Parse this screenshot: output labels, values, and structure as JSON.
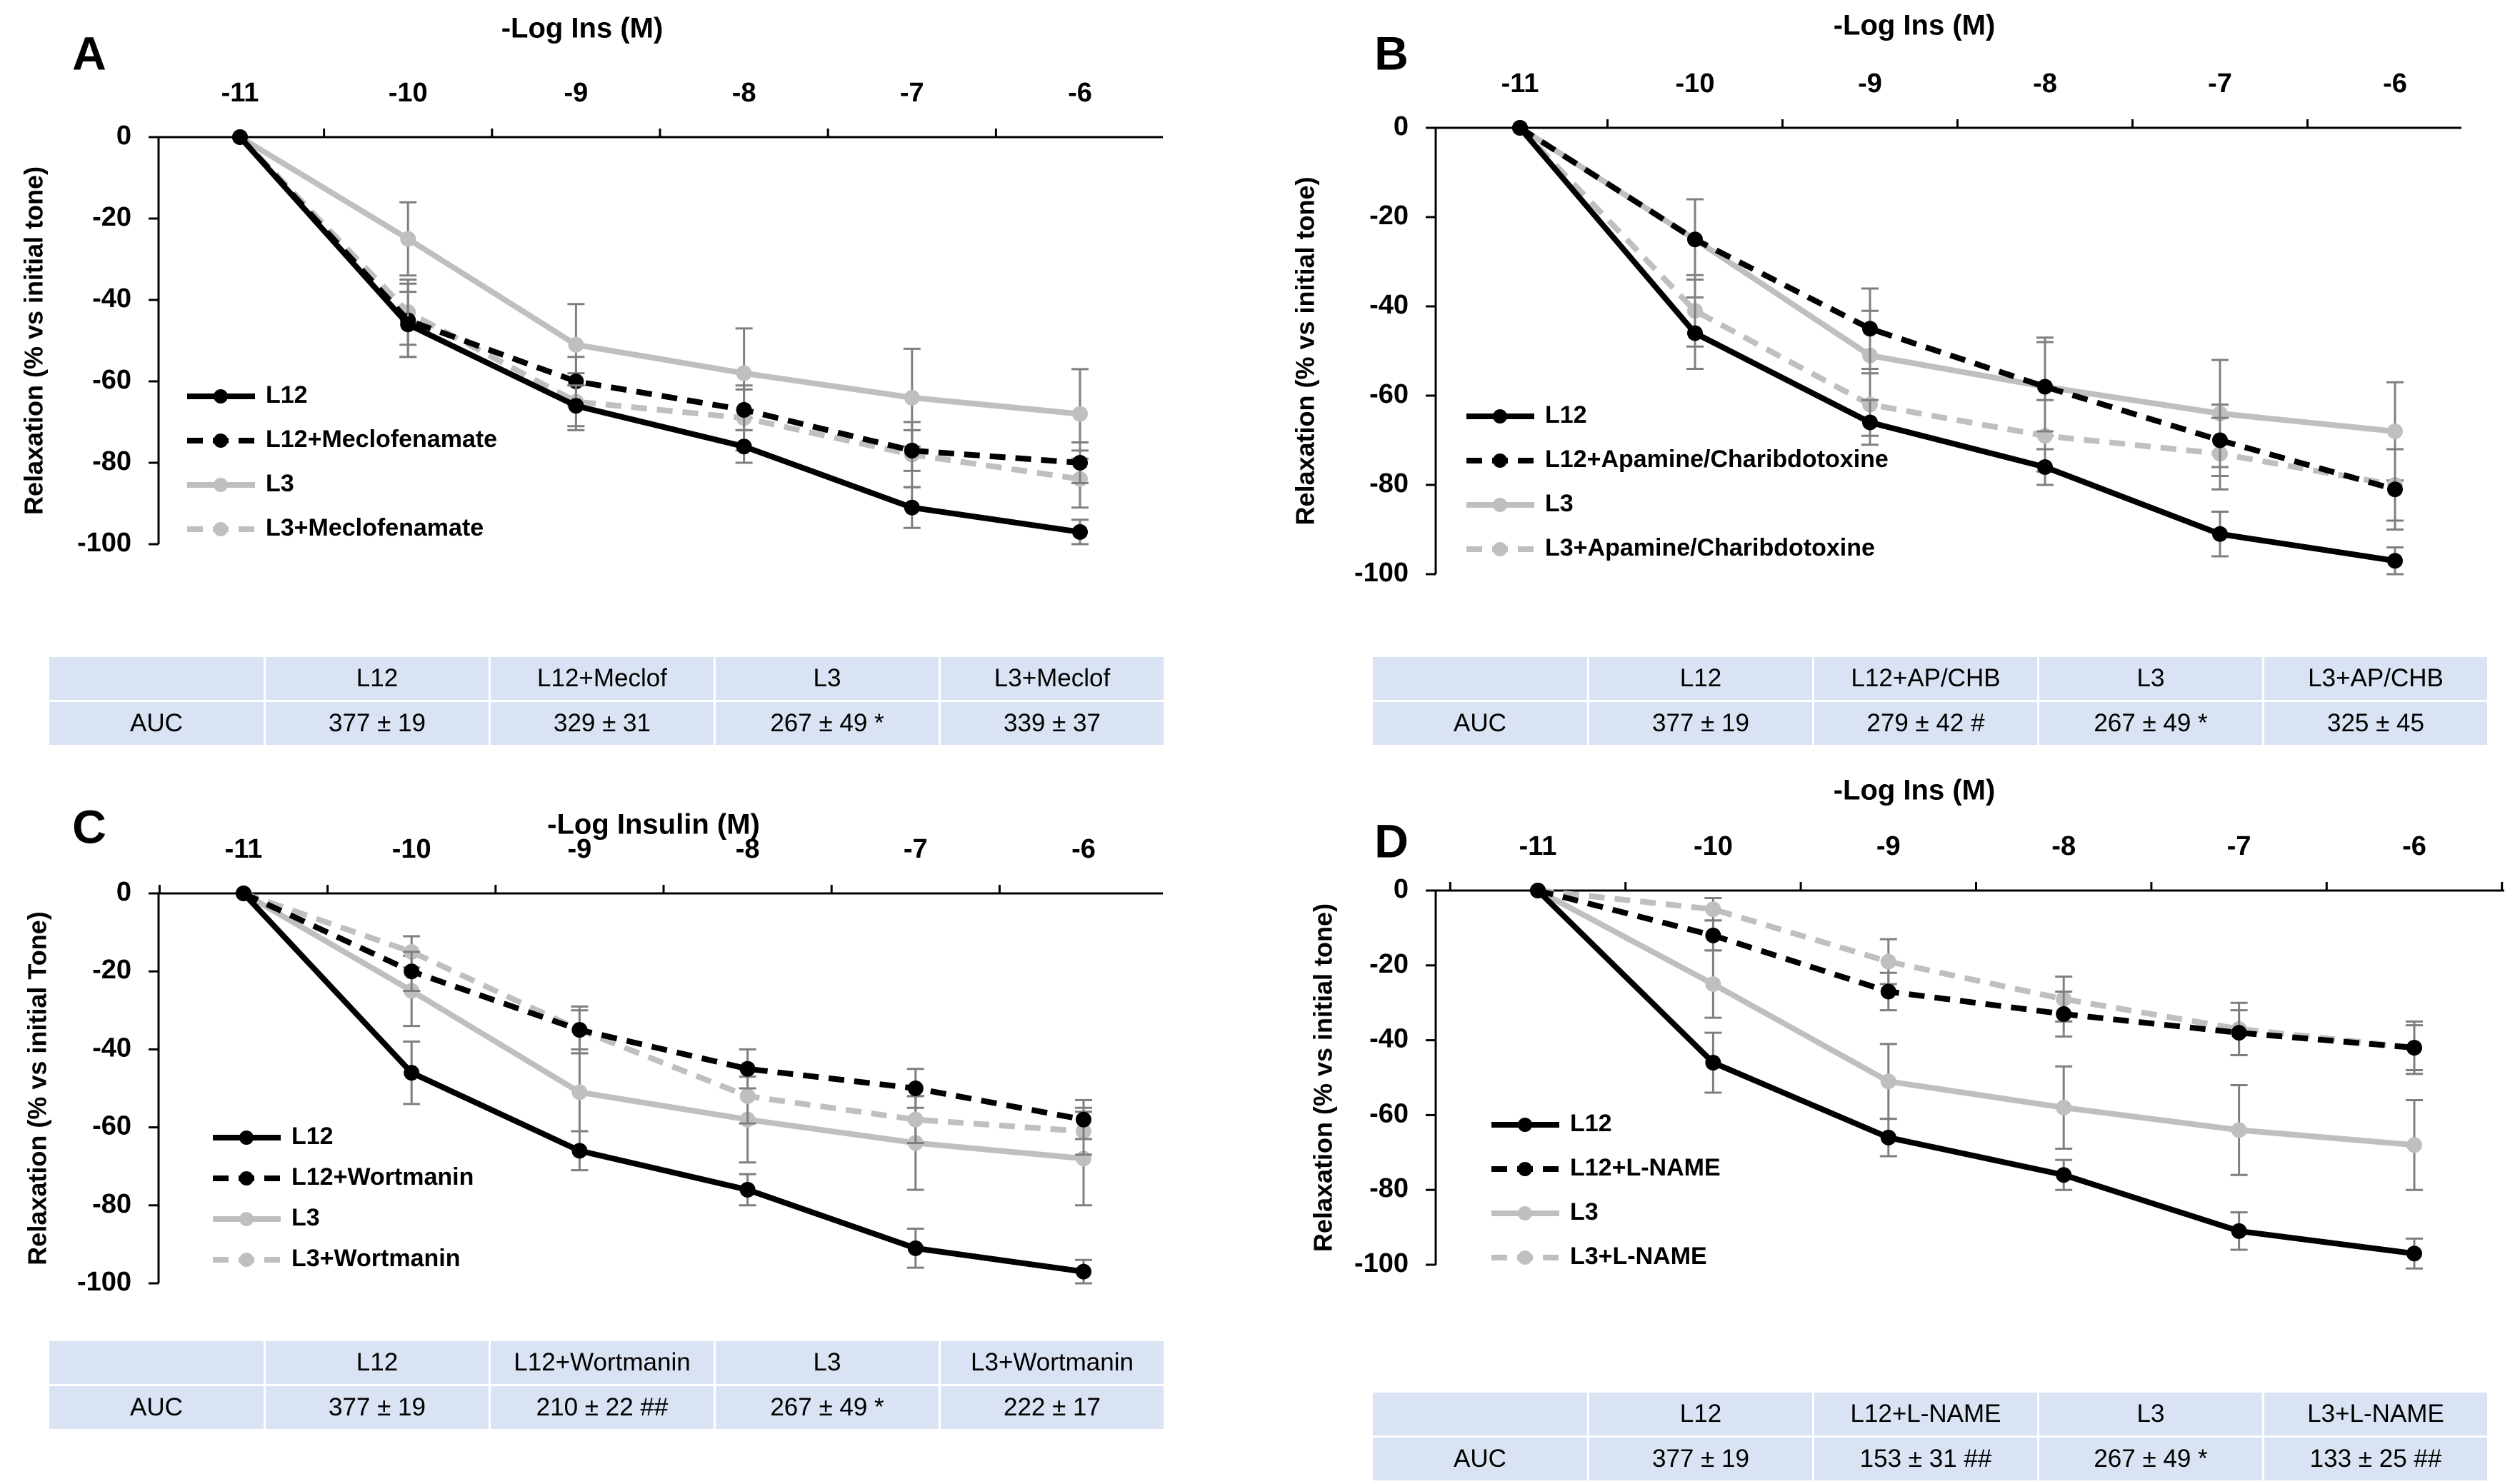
{
  "chart_data": [
    {
      "type": "line",
      "panel": "A",
      "title": "-Log Ins (M)",
      "xlabel": "-Log Ins (M)",
      "ylabel": "Relaxation (% vs initial tone)",
      "categories": [
        "-11",
        "-10",
        "-9",
        "-8",
        "-7",
        "-6"
      ],
      "xlim": [
        -11,
        -6
      ],
      "ylim": [
        -100,
        0
      ],
      "yticks": [
        "0",
        "-20",
        "-40",
        "-60",
        "-80",
        "-100"
      ],
      "series": [
        {
          "name": "L12",
          "values": [
            0,
            -46,
            -66,
            -76,
            -91,
            -97
          ],
          "errors": [
            0,
            8,
            5,
            4,
            5,
            3
          ]
        },
        {
          "name": "L12+Meclofenamate",
          "values": [
            0,
            -45,
            -60,
            -67,
            -77,
            -80
          ],
          "errors": [
            0,
            9,
            6,
            5,
            5,
            5
          ]
        },
        {
          "name": "L3",
          "values": [
            0,
            -25,
            -51,
            -58,
            -64,
            -68
          ],
          "errors": [
            0,
            9,
            10,
            11,
            12,
            11
          ]
        },
        {
          "name": "L3+Meclofenamate",
          "values": [
            0,
            -43,
            -65,
            -69,
            -78,
            -84
          ],
          "errors": [
            0,
            8,
            7,
            8,
            8,
            7
          ]
        }
      ],
      "auc": {
        "row_label": "AUC",
        "columns": [
          "L12",
          "L12+Meclof",
          "L3",
          "L3+Meclof"
        ],
        "values": [
          "377 ± 19",
          "329 ± 31",
          "267 ± 49 *",
          "339 ± 37"
        ]
      }
    },
    {
      "type": "line",
      "panel": "B",
      "title": "-Log Ins (M)",
      "xlabel": "-Log Ins (M)",
      "ylabel": "Relaxation (% vs initial tone)",
      "categories": [
        "-11",
        "-10",
        "-9",
        "-8",
        "-7",
        "-6"
      ],
      "xlim": [
        -11,
        -6
      ],
      "ylim": [
        -100,
        0
      ],
      "yticks": [
        "0",
        "-20",
        "-40",
        "-60",
        "-80",
        "-100"
      ],
      "series": [
        {
          "name": "L12",
          "values": [
            0,
            -46,
            -66,
            -76,
            -91,
            -97
          ],
          "errors": [
            0,
            8,
            5,
            4,
            5,
            3
          ]
        },
        {
          "name": "L12+Apamine/Charibdotoxine",
          "values": [
            0,
            -25,
            -45,
            -58,
            -70,
            -81
          ],
          "errors": [
            0,
            9,
            9,
            10,
            8,
            9
          ]
        },
        {
          "name": "L3",
          "values": [
            0,
            -25,
            -51,
            -58,
            -64,
            -68
          ],
          "errors": [
            0,
            9,
            10,
            11,
            12,
            11
          ]
        },
        {
          "name": "L3+Apamine/Charibdotoxine",
          "values": [
            0,
            -41,
            -62,
            -69,
            -73,
            -80
          ],
          "errors": [
            0,
            8,
            7,
            8,
            8,
            8
          ]
        }
      ],
      "auc": {
        "row_label": "AUC",
        "columns": [
          "L12",
          "L12+AP/CHB",
          "L3",
          "L3+AP/CHB"
        ],
        "values": [
          "377 ± 19",
          "279 ± 42 #",
          "267 ± 49 *",
          "325 ± 45"
        ]
      }
    },
    {
      "type": "line",
      "panel": "C",
      "title": "-Log Insulin (M)",
      "xlabel": "-Log Insulin (M)",
      "ylabel": "Relaxation (% vs initial Tone)",
      "categories": [
        "-11",
        "-10",
        "-9",
        "-8",
        "-7",
        "-6"
      ],
      "xlim": [
        -11,
        -6
      ],
      "ylim": [
        -100,
        0
      ],
      "yticks": [
        "0",
        "-20",
        "-40",
        "-60",
        "-80",
        "-100"
      ],
      "series": [
        {
          "name": "L12",
          "values": [
            0,
            -46,
            -66,
            -76,
            -91,
            -97
          ],
          "errors": [
            0,
            8,
            5,
            4,
            5,
            3
          ]
        },
        {
          "name": "L12+Wortmanin",
          "values": [
            0,
            -20,
            -35,
            -45,
            -50,
            -58
          ],
          "errors": [
            0,
            5,
            5,
            5,
            5,
            5
          ]
        },
        {
          "name": "L3",
          "values": [
            0,
            -25,
            -51,
            -58,
            -64,
            -68
          ],
          "errors": [
            0,
            9,
            10,
            11,
            12,
            12
          ]
        },
        {
          "name": "L3+Wortmanin",
          "values": [
            0,
            -15,
            -35,
            -52,
            -58,
            -61
          ],
          "errors": [
            0,
            4,
            6,
            7,
            6,
            6
          ]
        }
      ],
      "auc": {
        "row_label": "AUC",
        "columns": [
          "L12",
          "L12+Wortmanin",
          "L3",
          "L3+Wortmanin"
        ],
        "values": [
          "377 ± 19",
          "210 ± 22 ##",
          "267 ± 49 *",
          "222 ± 17"
        ]
      }
    },
    {
      "type": "line",
      "panel": "D",
      "title": "-Log Ins (M)",
      "xlabel": "-Log Ins (M)",
      "ylabel": "Relaxation (% vs initial tone)",
      "categories": [
        "-11",
        "-10",
        "-9",
        "-8",
        "-7",
        "-6"
      ],
      "xlim": [
        -11,
        -6
      ],
      "ylim": [
        -100,
        0
      ],
      "yticks": [
        "0",
        "-20",
        "-40",
        "-60",
        "-80",
        "-100"
      ],
      "series": [
        {
          "name": "L12",
          "values": [
            0,
            -46,
            -66,
            -76,
            -91,
            -97
          ],
          "errors": [
            0,
            8,
            5,
            4,
            5,
            4
          ]
        },
        {
          "name": "L12+L-NAME",
          "values": [
            0,
            -12,
            -27,
            -33,
            -38,
            -42
          ],
          "errors": [
            0,
            4,
            5,
            6,
            6,
            7
          ]
        },
        {
          "name": "L3",
          "values": [
            0,
            -25,
            -51,
            -58,
            -64,
            -68
          ],
          "errors": [
            0,
            9,
            10,
            11,
            12,
            12
          ]
        },
        {
          "name": "L3+L-NAME",
          "values": [
            0,
            -5,
            -19,
            -29,
            -37,
            -42
          ],
          "errors": [
            0,
            3,
            6,
            6,
            7,
            6
          ]
        }
      ],
      "auc": {
        "row_label": "AUC",
        "columns": [
          "L12",
          "L12+L-NAME",
          "L3",
          "L3+L-NAME"
        ],
        "values": [
          "377 ± 19",
          "153 ± 31 ##",
          "267 ± 49 *",
          "133 ± 25 ##"
        ]
      }
    }
  ],
  "styles": {
    "series": [
      {
        "color": "#000000",
        "dash": false
      },
      {
        "color": "#000000",
        "dash": true
      },
      {
        "color": "#bfbfbf",
        "dash": false
      },
      {
        "color": "#bfbfbf",
        "dash": true
      }
    ],
    "table_fill": "#dae3f3"
  }
}
